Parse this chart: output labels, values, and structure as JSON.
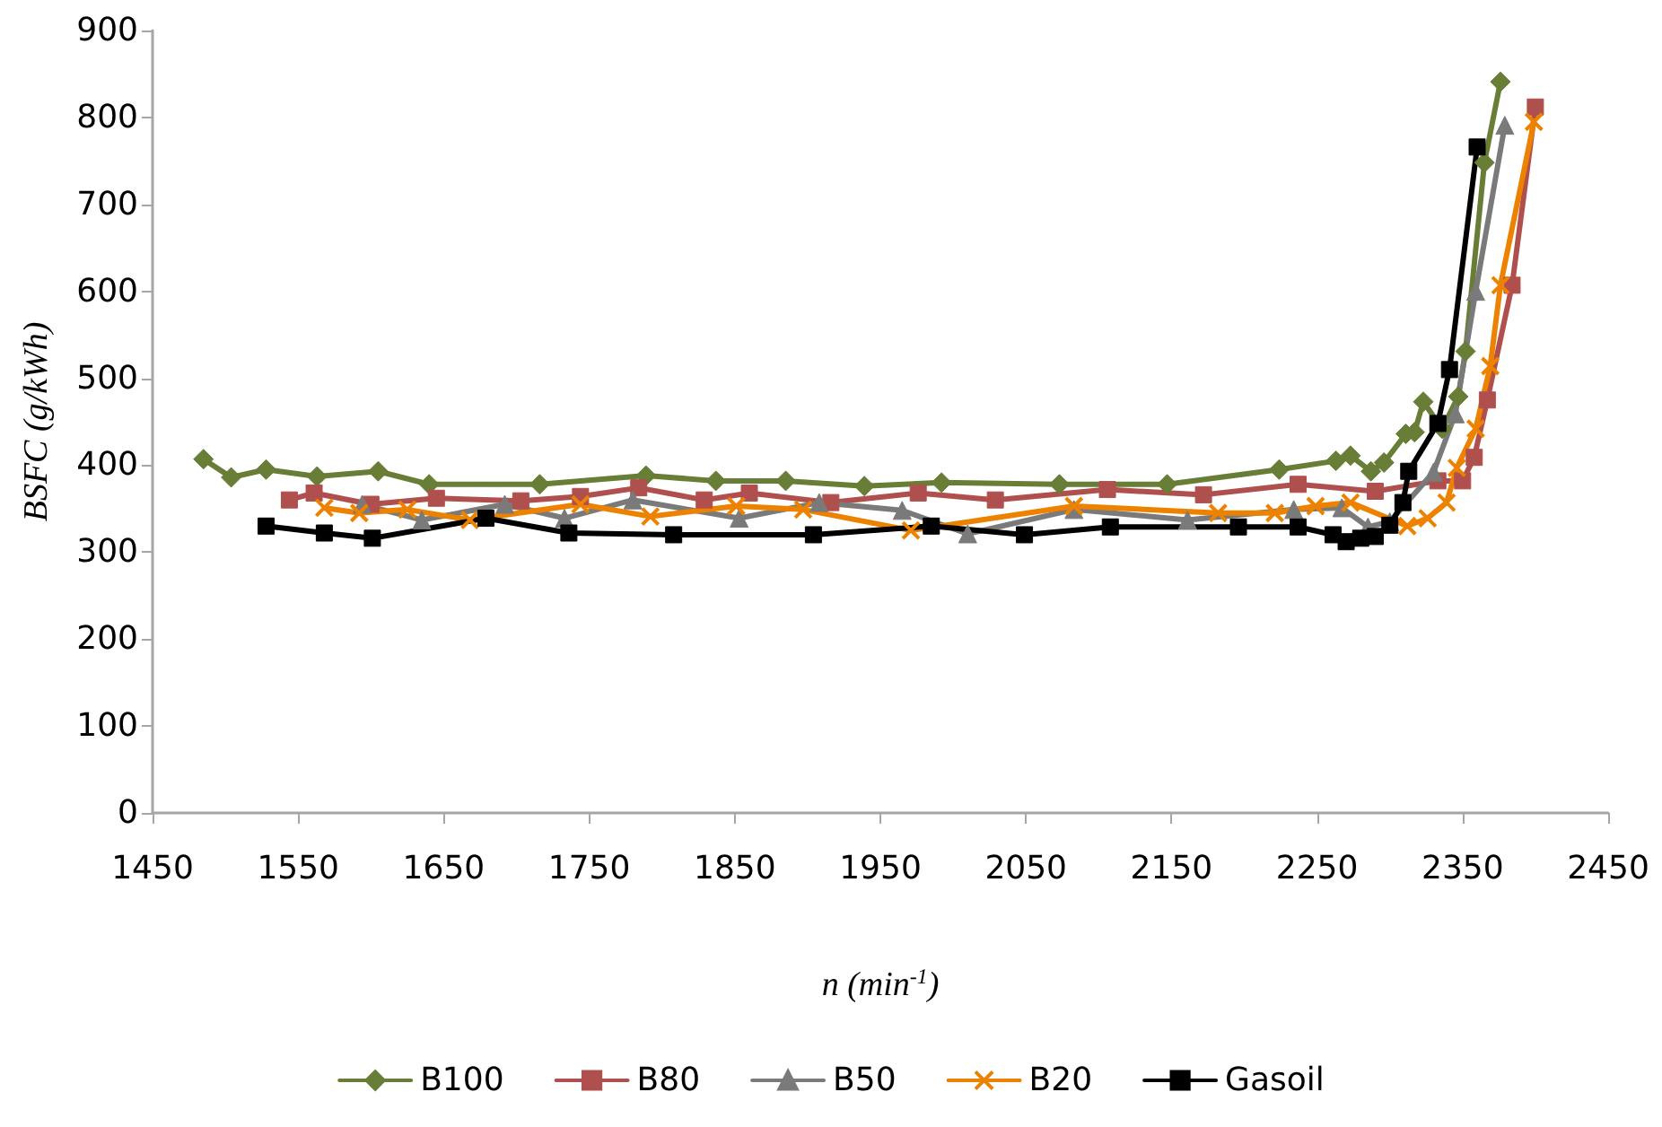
{
  "chart_data": {
    "type": "line",
    "xlabel": "n (min$^{-1}$)",
    "ylabel": "BSFC (g/kWh)",
    "xlim": [
      1450,
      2450
    ],
    "xticks": [
      1450,
      1550,
      1650,
      1750,
      1850,
      1950,
      2050,
      2150,
      2250,
      2350,
      2450
    ],
    "ylim": [
      0,
      900
    ],
    "yticks": [
      0,
      100,
      200,
      300,
      400,
      500,
      600,
      700,
      800,
      900
    ],
    "grid": false,
    "legend": "bottom",
    "line_style": "solid",
    "series": [
      {
        "name": "B100",
        "color": "#687d36",
        "marker": "diamond",
        "x": [
          1485,
          1504,
          1528,
          1563,
          1605,
          1640,
          1716,
          1789,
          1837,
          1885,
          1939,
          1992,
          2073,
          2147,
          2224,
          2263,
          2273,
          2287,
          2296,
          2311,
          2317,
          2323,
          2336,
          2347,
          2352,
          2365,
          2376
        ],
        "values": [
          407,
          386,
          395,
          387,
          393,
          378,
          378,
          388,
          382,
          382,
          376,
          380,
          378,
          378,
          395,
          405,
          411,
          393,
          403,
          436,
          438,
          473,
          442,
          479,
          531,
          748,
          841
        ]
      },
      {
        "name": "B80",
        "color": "#b0504e",
        "marker": "square",
        "x": [
          1544,
          1561,
          1600,
          1645,
          1703,
          1744,
          1784,
          1829,
          1860,
          1916,
          1976,
          2029,
          2106,
          2172,
          2237,
          2290,
          2333,
          2350,
          2358,
          2367,
          2384,
          2400
        ],
        "values": [
          360,
          368,
          355,
          362,
          359,
          364,
          374,
          360,
          368,
          357,
          368,
          360,
          372,
          366,
          378,
          370,
          382,
          382,
          409,
          475,
          607,
          812
        ]
      },
      {
        "name": "B50",
        "color": "#7a7a7a",
        "marker": "triangle",
        "x": [
          1594,
          1635,
          1692,
          1733,
          1780,
          1853,
          1908,
          1965,
          2010,
          2083,
          2161,
          2234,
          2267,
          2285,
          2300,
          2330,
          2345,
          2359,
          2379
        ],
        "values": [
          355,
          337,
          355,
          339,
          360,
          339,
          357,
          348,
          321,
          349,
          337,
          349,
          351,
          329,
          335,
          392,
          459,
          600,
          791
        ]
      },
      {
        "name": "B20",
        "color": "#ed8200",
        "marker": "cross",
        "x": [
          1568,
          1592,
          1625,
          1668,
          1744,
          1792,
          1851,
          1897,
          1971,
          2083,
          2182,
          2221,
          2249,
          2273,
          2312,
          2326,
          2339,
          2346,
          2359,
          2369,
          2376,
          2399
        ],
        "values": [
          351,
          345,
          349,
          337,
          355,
          341,
          353,
          349,
          325,
          353,
          345,
          345,
          353,
          357,
          330,
          339,
          357,
          397,
          442,
          514,
          607,
          795
        ]
      },
      {
        "name": "Gasoil",
        "color": "#000000",
        "marker": "square",
        "x": [
          1528,
          1568,
          1601,
          1679,
          1736,
          1808,
          1904,
          1985,
          2049,
          2108,
          2196,
          2237,
          2261,
          2270,
          2280,
          2290,
          2300,
          2309,
          2313,
          2333,
          2341,
          2360
        ],
        "values": [
          330,
          322,
          316,
          339,
          322,
          320,
          320,
          330,
          320,
          329,
          329,
          329,
          320,
          312,
          316,
          318,
          331,
          357,
          393,
          448,
          510,
          766
        ]
      }
    ]
  }
}
